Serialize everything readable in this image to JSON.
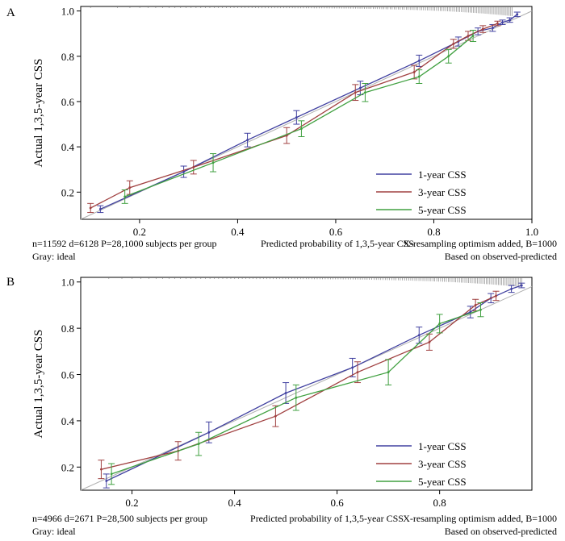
{
  "chart_data": [
    {
      "type": "line",
      "panel_label": "A",
      "title": "",
      "ylabel": "Actual 1,3,5-year CSS",
      "xlabel": "Predicted probability of 1,3,5-year CSS",
      "xlim": [
        0.08,
        1.0
      ],
      "ylim": [
        0.08,
        1.02
      ],
      "xticks": [
        "0.2",
        "0.4",
        "0.6",
        "0.8",
        "1.0"
      ],
      "xtick_values": [
        0.2,
        0.4,
        0.6,
        0.8,
        1.0
      ],
      "yticks": [
        "0.2",
        "0.4",
        "0.6",
        "0.8",
        "1.0"
      ],
      "ytick_values": [
        0.2,
        0.4,
        0.6,
        0.8,
        1.0
      ],
      "reference_line": "ideal (gray)",
      "footnote_left": "n=11592 d=6128 P=28,1000 subjects per group",
      "footnote_left2": "Gray: ideal",
      "footnote_right": "X-resampling optimism added, B=1000",
      "footnote_right2": "Based on observed-predicted",
      "legend_position": "bottom-right",
      "series": [
        {
          "name": "1-year CSS",
          "color": "#4040a0",
          "x": [
            0.12,
            0.29,
            0.42,
            0.52,
            0.65,
            0.77,
            0.85,
            0.89,
            0.92,
            0.94,
            0.955,
            0.97
          ],
          "y": [
            0.125,
            0.29,
            0.43,
            0.53,
            0.66,
            0.78,
            0.865,
            0.91,
            0.925,
            0.95,
            0.96,
            0.985
          ],
          "err": [
            0.015,
            0.025,
            0.03,
            0.03,
            0.03,
            0.025,
            0.02,
            0.015,
            0.015,
            0.01,
            0.01,
            0.01
          ]
        },
        {
          "name": "3-year CSS",
          "color": "#a04040",
          "x": [
            0.1,
            0.18,
            0.31,
            0.5,
            0.64,
            0.76,
            0.84,
            0.87,
            0.9,
            0.93
          ],
          "y": [
            0.13,
            0.22,
            0.31,
            0.45,
            0.64,
            0.73,
            0.855,
            0.89,
            0.92,
            0.945
          ],
          "err": [
            0.02,
            0.03,
            0.03,
            0.035,
            0.035,
            0.03,
            0.02,
            0.02,
            0.015,
            0.01
          ]
        },
        {
          "name": "5-year CSS",
          "color": "#40a040",
          "x": [
            0.17,
            0.35,
            0.53,
            0.66,
            0.77,
            0.83,
            0.88
          ],
          "y": [
            0.18,
            0.33,
            0.48,
            0.64,
            0.71,
            0.8,
            0.89
          ],
          "err": [
            0.03,
            0.04,
            0.035,
            0.04,
            0.03,
            0.03,
            0.025
          ]
        }
      ]
    },
    {
      "type": "line",
      "panel_label": "B",
      "title": "",
      "ylabel": "Actual 1,3,5-year CSS",
      "xlabel": "Predicted probability of 1,3,5-year CSS",
      "xlim": [
        0.1,
        0.98
      ],
      "ylim": [
        0.1,
        1.02
      ],
      "xticks": [
        "0.2",
        "0.4",
        "0.6",
        "0.8"
      ],
      "xtick_values": [
        0.2,
        0.4,
        0.6,
        0.8
      ],
      "yticks": [
        "0.2",
        "0.4",
        "0.6",
        "0.8",
        "1.0"
      ],
      "ytick_values": [
        0.2,
        0.4,
        0.6,
        0.8,
        1.0
      ],
      "reference_line": "ideal (gray)",
      "footnote_left": "n=4966 d=2671 P=28,500 subjects per group",
      "footnote_left2": "Gray: ideal",
      "footnote_right": "X-resampling optimism added, B=1000",
      "footnote_right2": "Based on observed-predicted",
      "legend_position": "bottom-right",
      "series": [
        {
          "name": "1-year CSS",
          "color": "#4040a0",
          "x": [
            0.15,
            0.35,
            0.5,
            0.63,
            0.76,
            0.86,
            0.9,
            0.94,
            0.96
          ],
          "y": [
            0.14,
            0.35,
            0.52,
            0.63,
            0.77,
            0.87,
            0.93,
            0.97,
            0.985
          ],
          "err": [
            0.03,
            0.045,
            0.045,
            0.04,
            0.035,
            0.025,
            0.02,
            0.015,
            0.01
          ]
        },
        {
          "name": "3-year CSS",
          "color": "#a04040",
          "x": [
            0.14,
            0.29,
            0.48,
            0.64,
            0.78,
            0.87,
            0.91
          ],
          "y": [
            0.19,
            0.27,
            0.42,
            0.61,
            0.74,
            0.9,
            0.94
          ],
          "err": [
            0.04,
            0.04,
            0.045,
            0.045,
            0.035,
            0.025,
            0.02
          ]
        },
        {
          "name": "5-year CSS",
          "color": "#40a040",
          "x": [
            0.16,
            0.33,
            0.52,
            0.7,
            0.8,
            0.88
          ],
          "y": [
            0.17,
            0.3,
            0.5,
            0.61,
            0.82,
            0.88
          ],
          "err": [
            0.045,
            0.05,
            0.055,
            0.055,
            0.04,
            0.03
          ]
        }
      ]
    }
  ]
}
